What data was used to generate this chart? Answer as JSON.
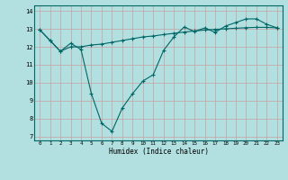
{
  "title": "",
  "xlabel": "Humidex (Indice chaleur)",
  "ylabel": "",
  "bg_color": "#b2e0e0",
  "grid_color": "#d0e8e8",
  "line_color": "#006666",
  "xlim": [
    -0.5,
    23.5
  ],
  "ylim": [
    6.8,
    14.3
  ],
  "yticks": [
    7,
    8,
    9,
    10,
    11,
    12,
    13,
    14
  ],
  "xticks": [
    0,
    1,
    2,
    3,
    4,
    5,
    6,
    7,
    8,
    9,
    10,
    11,
    12,
    13,
    14,
    15,
    16,
    17,
    18,
    19,
    20,
    21,
    22,
    23
  ],
  "line1_x": [
    0,
    1,
    2,
    3,
    4,
    5,
    6,
    7,
    8,
    9,
    10,
    11,
    12,
    13,
    14,
    15,
    16,
    17,
    18,
    19,
    20,
    21,
    22,
    23
  ],
  "line1_y": [
    12.95,
    12.35,
    11.75,
    12.2,
    11.85,
    9.4,
    7.75,
    7.3,
    8.6,
    9.4,
    10.1,
    10.45,
    11.8,
    12.55,
    13.1,
    12.85,
    13.05,
    12.8,
    13.15,
    13.35,
    13.55,
    13.55,
    13.25,
    13.05
  ],
  "line2_x": [
    0,
    1,
    2,
    3,
    4,
    5,
    6,
    7,
    8,
    9,
    10,
    11,
    12,
    13,
    14,
    15,
    16,
    17,
    18,
    19,
    20,
    21,
    22,
    23
  ],
  "line2_y": [
    12.95,
    12.35,
    11.75,
    12.0,
    12.0,
    12.1,
    12.15,
    12.25,
    12.35,
    12.45,
    12.55,
    12.6,
    12.68,
    12.75,
    12.82,
    12.88,
    12.93,
    12.97,
    13.0,
    13.03,
    13.06,
    13.08,
    13.08,
    13.05
  ]
}
